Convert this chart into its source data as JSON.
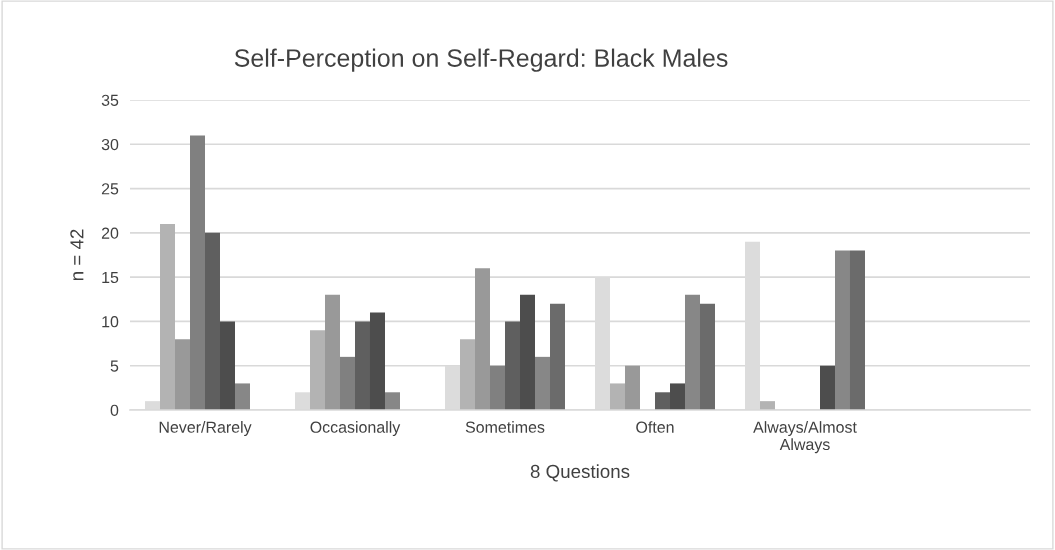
{
  "chart_data": {
    "type": "bar",
    "title": "Self-Perception on Self-Regard: Black Males",
    "xlabel": "8 Questions",
    "ylabel": "n = 42",
    "categories": [
      "Never/Rarely",
      "Occasionally",
      "Sometimes",
      "Often",
      "Always/Almost Always",
      null
    ],
    "series": [
      {
        "color": "#dcdcdc",
        "values": [
          1,
          2,
          5,
          15,
          19,
          null
        ]
      },
      {
        "color": "#b3b3b3",
        "values": [
          21,
          9,
          8,
          3,
          1,
          null
        ]
      },
      {
        "color": "#999999",
        "values": [
          8,
          13,
          16,
          5,
          0,
          null
        ]
      },
      {
        "color": "#808080",
        "values": [
          31,
          6,
          5,
          0,
          0,
          null
        ]
      },
      {
        "color": "#5f5f5f",
        "values": [
          20,
          10,
          10,
          2,
          0,
          null
        ]
      },
      {
        "color": "#4d4d4d",
        "values": [
          10,
          11,
          13,
          3,
          5,
          null
        ]
      },
      {
        "color": "#878787",
        "values": [
          3,
          2,
          6,
          13,
          18,
          null
        ]
      },
      {
        "color": "#6b6b6b",
        "values": [
          0,
          0,
          12,
          12,
          18,
          null
        ]
      }
    ],
    "ylim": [
      0,
      35
    ],
    "yticks": [
      0,
      5,
      10,
      15,
      20,
      25,
      30,
      35
    ],
    "grid": "y"
  }
}
